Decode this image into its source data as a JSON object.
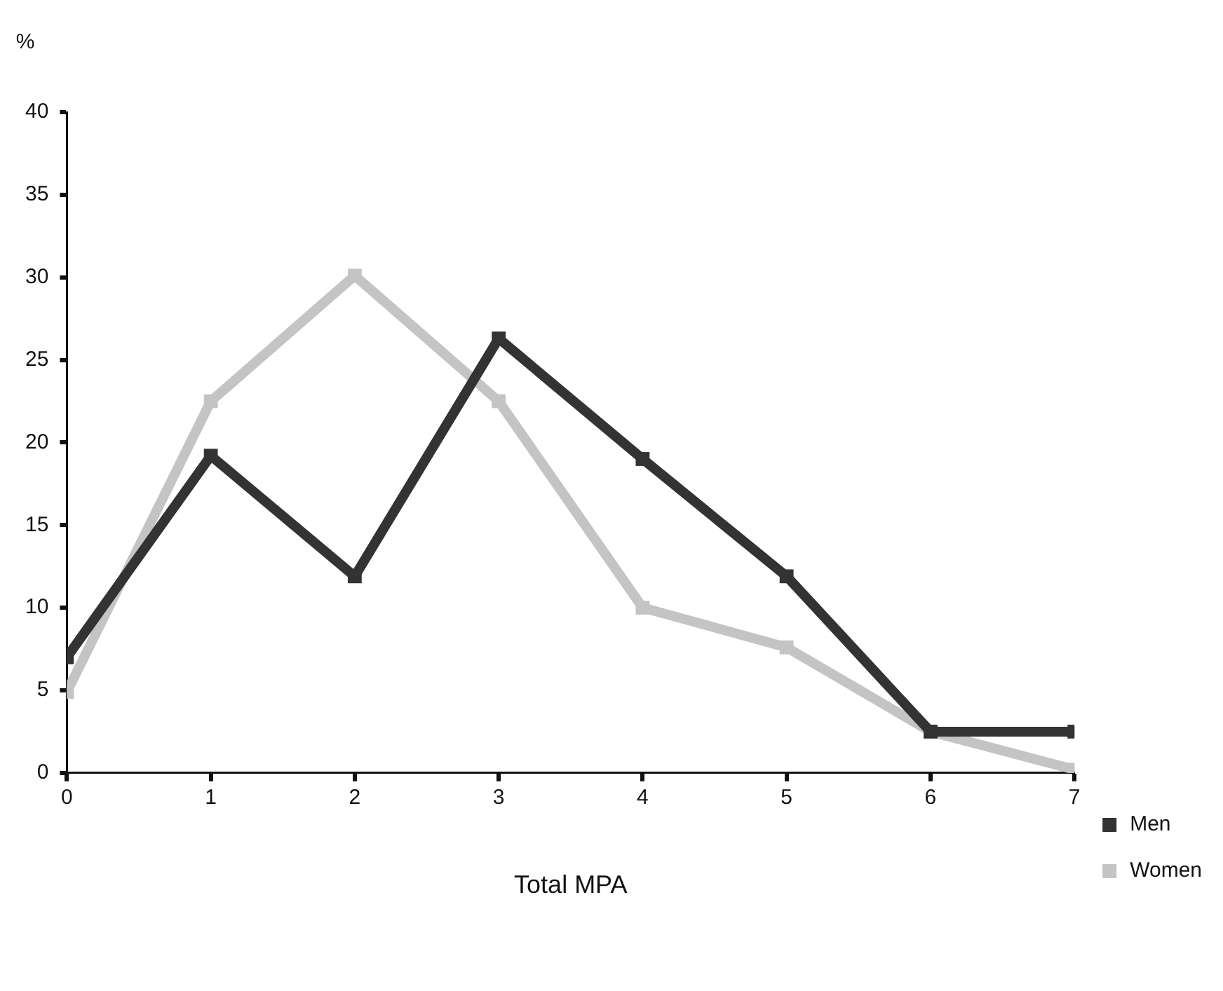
{
  "chart_data": {
    "type": "line",
    "xlabel": "Total MPA",
    "ylabel": "%",
    "x": [
      0,
      1,
      2,
      3,
      4,
      5,
      6,
      7
    ],
    "series": [
      {
        "name": "Men",
        "color": "#333333",
        "values": [
          7.0,
          19.2,
          11.9,
          26.3,
          19.0,
          11.9,
          2.5,
          2.5
        ]
      },
      {
        "name": "Women",
        "color": "#c4c4c4",
        "values": [
          4.9,
          22.5,
          30.1,
          22.5,
          10.0,
          7.6,
          2.5,
          0.2
        ]
      }
    ],
    "xlim": [
      0,
      7
    ],
    "xticks": [
      0,
      1,
      2,
      3,
      4,
      5,
      6,
      7
    ],
    "ylim": [
      0,
      40
    ],
    "yticks": [
      0,
      5,
      10,
      15,
      20,
      25,
      30,
      35,
      40
    ],
    "grid": false,
    "legend": "bottom right",
    "marker": "square",
    "line_style": "solid"
  }
}
